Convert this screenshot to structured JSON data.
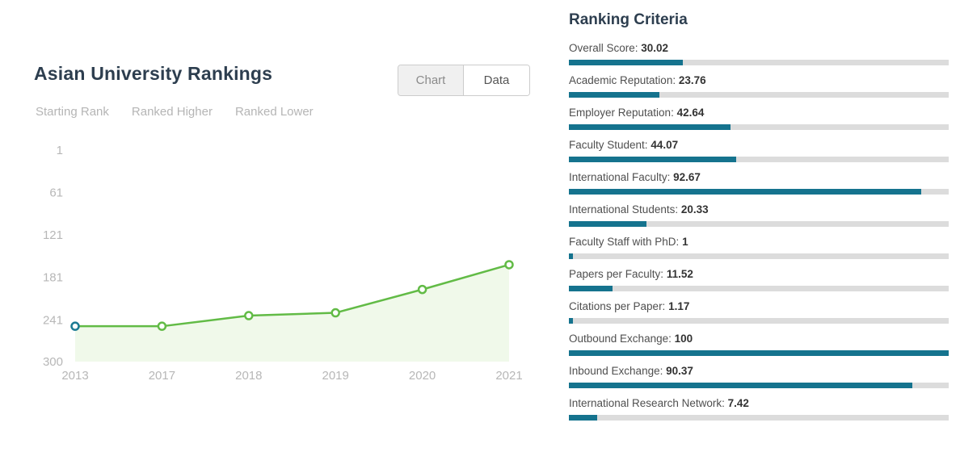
{
  "left_panel": {
    "title": "Asian University Rankings",
    "toggle": {
      "chart_label": "Chart",
      "data_label": "Data",
      "selected": "Chart"
    },
    "legend": [
      {
        "label": "Starting Rank",
        "color": "#1b7a93"
      },
      {
        "label": "Ranked Higher",
        "color": "#62bb46"
      },
      {
        "label": "Ranked Lower",
        "color": "#d9534f"
      }
    ]
  },
  "chart_data": {
    "type": "line",
    "title": "Asian University Rankings",
    "x": [
      "2013",
      "2017",
      "2018",
      "2019",
      "2020",
      "2021"
    ],
    "values": [
      250,
      250,
      235,
      231,
      198,
      163
    ],
    "series_name": "Rank",
    "y_axis": {
      "ticks": [
        1,
        61,
        121,
        181,
        241,
        300
      ],
      "min": 1,
      "max": 300,
      "inverted": true
    },
    "grid": false,
    "legend_position": "top-left",
    "line_color": "#62bb46",
    "area_color": "#f0f9ea",
    "marker_color": "#62bb46",
    "start_marker_color": "#1b7a93",
    "axis_label_color": "#b7b7b7"
  },
  "criteria_panel": {
    "title": "Ranking Criteria",
    "bar_color": "#15738e",
    "track_color": "#dcdcdc",
    "max": 100,
    "items": [
      {
        "label": "Overall Score",
        "value": "30.02"
      },
      {
        "label": "Academic Reputation",
        "value": "23.76"
      },
      {
        "label": "Employer Reputation",
        "value": "42.64"
      },
      {
        "label": "Faculty Student",
        "value": "44.07"
      },
      {
        "label": "International Faculty",
        "value": "92.67"
      },
      {
        "label": "International Students",
        "value": "20.33"
      },
      {
        "label": "Faculty Staff with PhD",
        "value": "1"
      },
      {
        "label": "Papers per Faculty",
        "value": "11.52"
      },
      {
        "label": "Citations per Paper",
        "value": "1.17"
      },
      {
        "label": "Outbound Exchange",
        "value": "100"
      },
      {
        "label": "Inbound Exchange",
        "value": "90.37"
      },
      {
        "label": "International Research Network",
        "value": "7.42"
      }
    ]
  }
}
